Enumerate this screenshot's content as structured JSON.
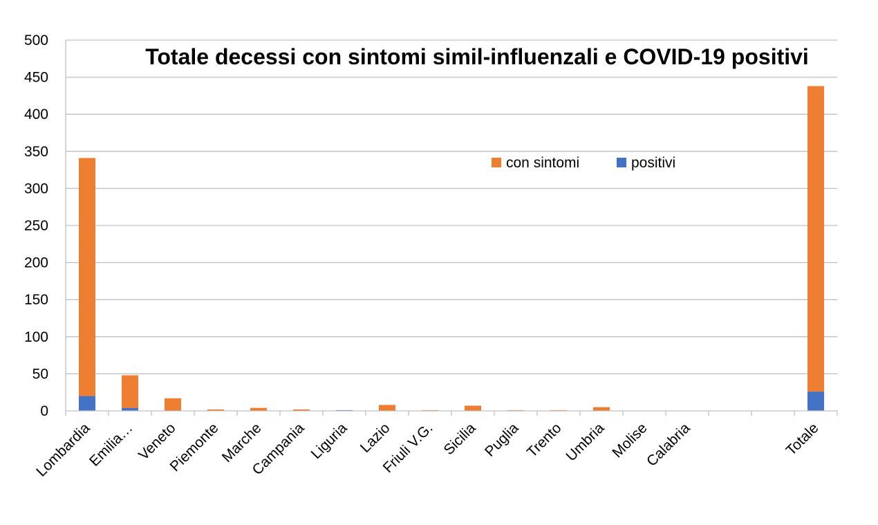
{
  "chart_data": {
    "type": "bar",
    "stacked": true,
    "title": "Totale decessi con sintomi simil-influenzali e COVID-19 positivi",
    "xlabel": "",
    "ylabel": "",
    "ylim": [
      0,
      500
    ],
    "yticks": [
      "0",
      "50",
      "100",
      "150",
      "200",
      "250",
      "300",
      "350",
      "400",
      "450",
      "500"
    ],
    "grid": true,
    "legend_position": "top-right",
    "categories": [
      "Lombardia",
      "Emilia…",
      "Veneto",
      "Piemonte",
      "Marche",
      "Campania",
      "Liguria",
      "Lazio",
      "Friuli V.G.",
      "Sicilia",
      "Puglia",
      "Trento",
      "Umbria",
      "Molise",
      "Calabria",
      "",
      "",
      "Totale"
    ],
    "series": [
      {
        "name": "positivi",
        "color": "#4472C4",
        "values": [
          20,
          4,
          0,
          0,
          0,
          0,
          1,
          0,
          0,
          0,
          0,
          0,
          0,
          0,
          0,
          0,
          0,
          26
        ]
      },
      {
        "name": "con sintomi",
        "color": "#ED7D31",
        "values": [
          321,
          44,
          17,
          2,
          4,
          2,
          0,
          8,
          1,
          7,
          1,
          1,
          5,
          0,
          0,
          0,
          0,
          412
        ]
      }
    ],
    "legend_order": [
      "con sintomi",
      "positivi"
    ]
  }
}
